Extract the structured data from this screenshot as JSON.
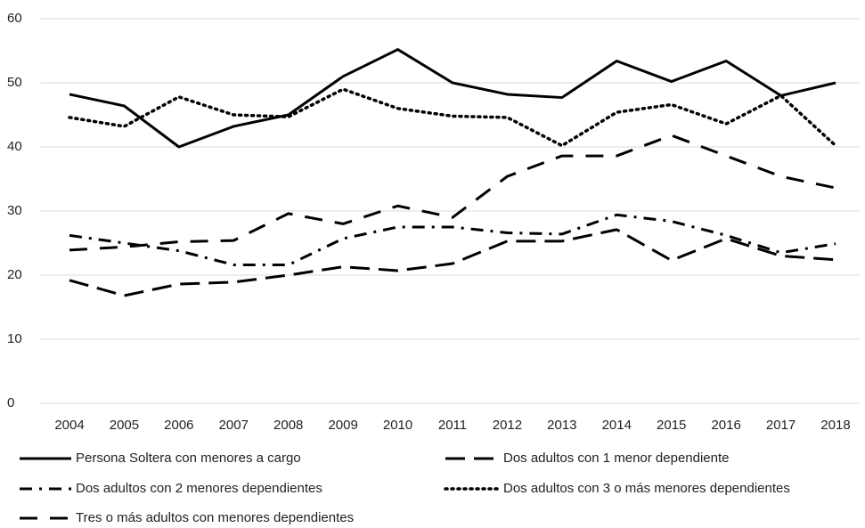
{
  "chart_data": {
    "type": "line",
    "categories": [
      "2004",
      "2005",
      "2006",
      "2007",
      "2008",
      "2009",
      "2010",
      "2011",
      "2012",
      "2013",
      "2014",
      "2015",
      "2016",
      "2017",
      "2018"
    ],
    "series": [
      {
        "name": "Persona Soltera con menores a cargo",
        "color": "#000000",
        "dash": "solid",
        "values": [
          48.2,
          46.4,
          40.0,
          43.2,
          45.0,
          51.0,
          55.2,
          50.0,
          48.2,
          47.7,
          53.4,
          50.2,
          53.4,
          48.0,
          50.0
        ]
      },
      {
        "name": "Dos adultos con 1 menor dependiente",
        "color": "#000000",
        "dash": "long-dash",
        "values": [
          19.2,
          16.8,
          18.6,
          18.9,
          20.0,
          21.3,
          20.7,
          21.8,
          25.3,
          25.3,
          27.1,
          22.3,
          25.7,
          23.0,
          22.4
        ]
      },
      {
        "name": "Dos adultos con 2 menores dependientes",
        "color": "#000000",
        "dash": "dash-dot",
        "values": [
          26.2,
          25.0,
          23.8,
          21.6,
          21.6,
          25.7,
          27.5,
          27.5,
          26.6,
          26.4,
          29.4,
          28.4,
          26.2,
          23.5,
          24.9
        ]
      },
      {
        "name": "Dos adultos con 3 o más menores dependientes",
        "color": "#000000",
        "dash": "dot",
        "values": [
          44.6,
          43.2,
          47.8,
          45.0,
          44.7,
          49.0,
          46.0,
          44.8,
          44.6,
          40.2,
          45.4,
          46.6,
          43.6,
          48.0,
          40.2
        ]
      },
      {
        "name": "Tres o más adultos con menores dependientes",
        "color": "#000000",
        "dash": "dash",
        "values": [
          23.9,
          24.4,
          25.2,
          25.4,
          29.6,
          28.0,
          30.8,
          29.0,
          35.4,
          38.6,
          38.6,
          41.8,
          38.6,
          35.4,
          33.6
        ]
      }
    ],
    "ylim": [
      0,
      60
    ],
    "yticks": [
      0,
      10,
      20,
      30,
      40,
      50,
      60
    ],
    "grid": true,
    "legend": "bottom"
  }
}
